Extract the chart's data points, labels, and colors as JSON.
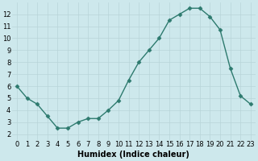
{
  "x": [
    0,
    1,
    2,
    3,
    4,
    5,
    6,
    7,
    8,
    9,
    10,
    11,
    12,
    13,
    14,
    15,
    16,
    17,
    18,
    19,
    20,
    21,
    22,
    23
  ],
  "y": [
    6.0,
    5.0,
    4.5,
    3.5,
    2.5,
    2.5,
    3.0,
    3.3,
    3.3,
    4.0,
    4.8,
    6.5,
    8.0,
    9.0,
    10.0,
    11.5,
    12.0,
    12.5,
    12.5,
    11.8,
    10.7,
    7.5,
    5.2,
    4.5
  ],
  "line_color": "#2d7a6e",
  "marker_color": "#2d7a6e",
  "bg_color": "#cde8ec",
  "grid_color": "#b8d4d8",
  "xlabel": "Humidex (Indice chaleur)",
  "ylabel": "",
  "xlim": [
    -0.5,
    23.5
  ],
  "ylim": [
    1.5,
    13.0
  ],
  "yticks": [
    2,
    3,
    4,
    5,
    6,
    7,
    8,
    9,
    10,
    11,
    12
  ],
  "xticks": [
    0,
    1,
    2,
    3,
    4,
    5,
    6,
    7,
    8,
    9,
    10,
    11,
    12,
    13,
    14,
    15,
    16,
    17,
    18,
    19,
    20,
    21,
    22,
    23
  ],
  "label_fontsize": 7,
  "tick_fontsize": 6,
  "line_width": 1.0,
  "marker_size": 2.5
}
